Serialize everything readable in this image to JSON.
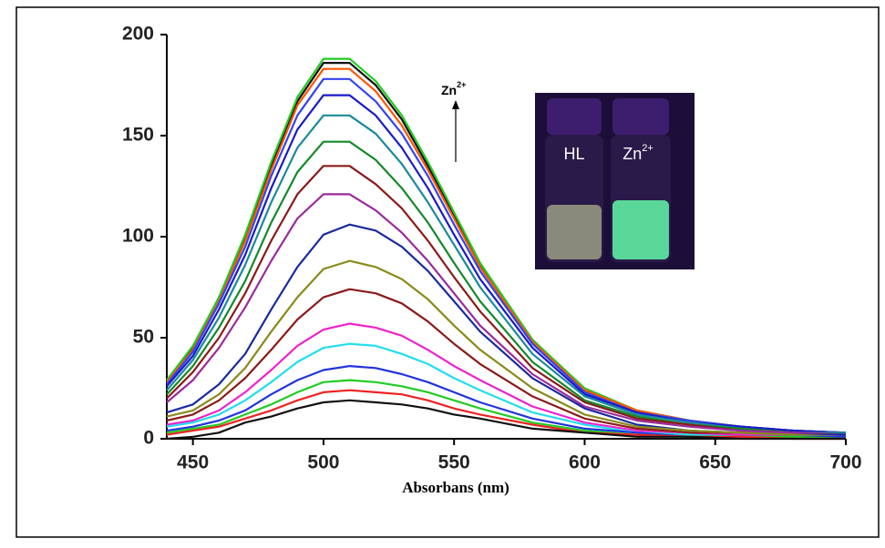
{
  "chart_data": {
    "type": "line",
    "x_label": "Absorbans (nm)",
    "x": [
      440,
      450,
      460,
      470,
      480,
      490,
      500,
      510,
      520,
      530,
      540,
      550,
      560,
      580,
      600,
      620,
      640,
      660,
      680,
      700
    ],
    "xlim": [
      440,
      700
    ],
    "xticks": [
      450,
      500,
      550,
      600,
      650,
      700
    ],
    "ylim": [
      0,
      200
    ],
    "yticks": [
      0,
      50,
      100,
      150,
      200
    ],
    "series": [
      {
        "color": "#111111",
        "values": [
          28,
          45,
          70,
          100,
          135,
          167,
          186,
          186,
          175,
          158,
          135,
          111,
          86,
          49,
          24,
          14,
          9,
          6,
          4,
          3
        ]
      },
      {
        "color": "#22cc22",
        "values": [
          29,
          46,
          70,
          101,
          137,
          169,
          188,
          188,
          177,
          160,
          137,
          112,
          87,
          49,
          25,
          14,
          9,
          6,
          4,
          3
        ]
      },
      {
        "color": "#ff5500",
        "values": [
          28,
          44,
          68,
          98,
          133,
          165,
          183,
          183,
          172,
          155,
          133,
          109,
          85,
          48,
          24,
          14,
          9,
          6,
          4,
          3
        ]
      },
      {
        "color": "#3344ee",
        "values": [
          27,
          43,
          67,
          95,
          130,
          160,
          178,
          178,
          167,
          151,
          130,
          106,
          83,
          47,
          23,
          13,
          9,
          6,
          4,
          3
        ]
      },
      {
        "color": "#1a1acc",
        "values": [
          26,
          41,
          64,
          91,
          124,
          153,
          170,
          170,
          160,
          144,
          124,
          101,
          79,
          45,
          22,
          13,
          8,
          6,
          4,
          3
        ]
      },
      {
        "color": "#1a8a9a",
        "values": [
          24,
          39,
          60,
          86,
          117,
          144,
          160,
          160,
          151,
          136,
          117,
          96,
          75,
          42,
          21,
          12,
          8,
          5,
          3,
          3
        ]
      },
      {
        "color": "#138a2a",
        "values": [
          22,
          36,
          55,
          78,
          107,
          132,
          147,
          147,
          138,
          124,
          107,
          87,
          68,
          38,
          19,
          11,
          7,
          5,
          3,
          2
        ]
      },
      {
        "color": "#8b1a1a",
        "values": [
          20,
          33,
          50,
          72,
          98,
          121,
          135,
          135,
          126,
          114,
          98,
          80,
          63,
          35,
          18,
          10,
          7,
          4,
          3,
          2
        ]
      },
      {
        "color": "#9b2a9b",
        "values": [
          18,
          29,
          45,
          65,
          88,
          109,
          121,
          121,
          113,
          102,
          88,
          72,
          56,
          32,
          16,
          9,
          6,
          4,
          3,
          2
        ]
      },
      {
        "color": "#1a2aa0",
        "values": [
          13,
          17,
          27,
          42,
          64,
          85,
          101,
          106,
          103,
          95,
          83,
          68,
          53,
          30,
          15,
          7,
          4,
          3,
          2,
          2
        ]
      },
      {
        "color": "#8a8a1a",
        "values": [
          11,
          14,
          22,
          35,
          53,
          70,
          84,
          88,
          85,
          79,
          69,
          56,
          44,
          25,
          12,
          6,
          4,
          3,
          2,
          1
        ]
      },
      {
        "color": "#8b1a1a",
        "values": [
          9,
          12,
          19,
          30,
          44,
          59,
          70,
          74,
          72,
          67,
          58,
          47,
          37,
          21,
          10,
          5,
          3,
          2,
          1,
          1
        ]
      },
      {
        "color": "#ee22cc",
        "values": [
          7,
          9,
          14,
          23,
          34,
          46,
          54,
          57,
          55,
          51,
          44,
          36,
          29,
          16,
          8,
          4,
          2,
          2,
          1,
          1
        ]
      },
      {
        "color": "#22ddee",
        "values": [
          6,
          8,
          12,
          19,
          28,
          38,
          45,
          47,
          46,
          42,
          37,
          30,
          24,
          13,
          7,
          3,
          2,
          1,
          1,
          1
        ]
      },
      {
        "color": "#2233dd",
        "values": [
          4,
          6,
          9,
          14,
          22,
          29,
          34,
          36,
          35,
          32,
          28,
          23,
          18,
          10,
          5,
          3,
          1,
          1,
          1,
          1
        ]
      },
      {
        "color": "#22cc22",
        "values": [
          3,
          5,
          7,
          12,
          17,
          23,
          28,
          29,
          28,
          26,
          23,
          19,
          15,
          8,
          4,
          2,
          1,
          1,
          1,
          0
        ]
      },
      {
        "color": "#ee2222",
        "values": [
          2,
          4,
          6,
          10,
          14,
          19,
          23,
          24,
          23,
          22,
          19,
          15,
          12,
          7,
          3,
          2,
          1,
          1,
          0,
          0
        ]
      },
      {
        "color": "#111111",
        "values": [
          0,
          1,
          3,
          8,
          11,
          15,
          18,
          19,
          18,
          17,
          15,
          12,
          10,
          5,
          3,
          1,
          1,
          0,
          0,
          0
        ]
      }
    ],
    "annotation": {
      "text": "Zn",
      "superscript": "2+"
    },
    "inset": {
      "labels": [
        {
          "text": "HL"
        },
        {
          "text": "Zn",
          "superscript": "2+"
        }
      ]
    }
  }
}
